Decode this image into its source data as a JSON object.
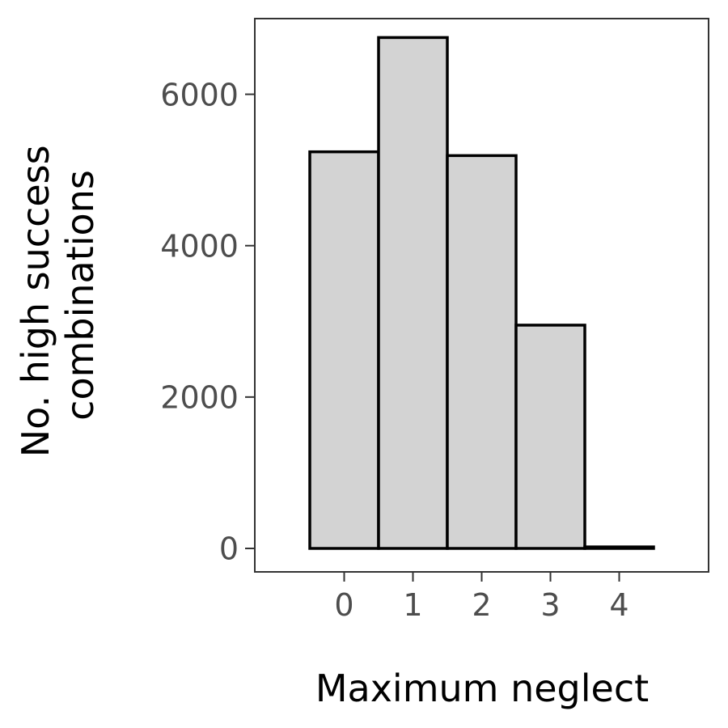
{
  "chart_data": {
    "type": "bar",
    "categories": [
      "0",
      "1",
      "2",
      "3",
      "4"
    ],
    "values": [
      5240,
      6750,
      5190,
      2950,
      20
    ],
    "xlabel": "Maximum neglect",
    "ylabel_lines": [
      "No. high success",
      "combinations"
    ],
    "ylim": [
      -310,
      7000
    ],
    "xlim": [
      -1.3,
      5.3
    ],
    "yticks": [
      0,
      2000,
      4000,
      6000
    ],
    "xticks": [
      0,
      1,
      2,
      3,
      4
    ],
    "grid": false,
    "legend": "none",
    "colors": {
      "bar_fill": "#d3d3d3",
      "bar_stroke": "#000000",
      "panel_border": "#333333",
      "tick_text": "#4d4d4d"
    }
  }
}
